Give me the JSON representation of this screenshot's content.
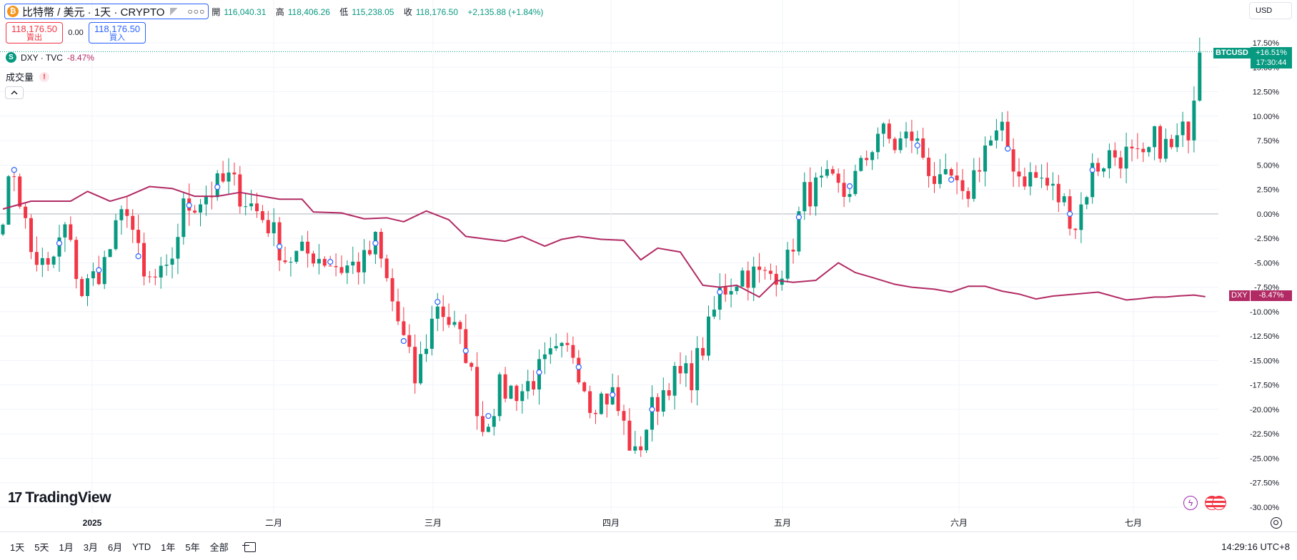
{
  "header": {
    "symbol_title": "比特幣 / 美元 · 1天 · CRYPTO",
    "btc_icon_glyph": "₿",
    "ohlc": {
      "open_label": "開",
      "open": "116,040.31",
      "high_label": "高",
      "high": "118,406.26",
      "low_label": "低",
      "low": "115,238.05",
      "close_label": "收",
      "close": "118,176.50",
      "change": "+2,135.88 (+1.84%)"
    },
    "currency": "USD"
  },
  "trade": {
    "sell_price": "118,176.50",
    "sell_label": "賣出",
    "spread": "0.00",
    "buy_price": "118,176.50",
    "buy_label": "買入"
  },
  "overlay": {
    "icon_glyph": "S",
    "name": "DXY · TVC",
    "change": "-8.47%"
  },
  "volume": {
    "label": "成交量",
    "warn_glyph": "!"
  },
  "badges": {
    "btc_symbol": "BTCUSD",
    "btc_change": "+16.51%",
    "btc_countdown": "17:30:44",
    "dxy_symbol": "DXY",
    "dxy_change": "-8.47%"
  },
  "colors": {
    "up": "#089981",
    "down": "#f23645",
    "dxy": "#b22a64",
    "grid": "#f0f3fa"
  },
  "logo": {
    "text": "TradingView",
    "mark": "17"
  },
  "bottom_bar": {
    "ranges": [
      "1天",
      "5天",
      "1月",
      "3月",
      "6月",
      "YTD",
      "1年",
      "5年",
      "全部"
    ],
    "clock": "14:29:16 UTC+8"
  },
  "chart_data": {
    "type": "candlestick",
    "y_axis": {
      "unit": "%",
      "range": [
        -30,
        17.5
      ],
      "ticks": [
        "17.50%",
        "15.00%",
        "12.50%",
        "10.00%",
        "7.50%",
        "5.00%",
        "2.50%",
        "0.00%",
        "-2.50%",
        "-5.00%",
        "-7.50%",
        "-10.00%",
        "-12.50%",
        "-15.00%",
        "-17.50%",
        "-20.00%",
        "-22.50%",
        "-25.00%",
        "-27.50%",
        "-30.00%"
      ]
    },
    "x_axis": {
      "labels": [
        "2025",
        "二月",
        "三月",
        "四月",
        "五月",
        "六月",
        "七月"
      ]
    },
    "btc_anchors": [
      {
        "i": 0,
        "v": 0.5
      },
      {
        "i": 2,
        "v": 4.5
      },
      {
        "i": 5,
        "v": -4
      },
      {
        "i": 8,
        "v": -6
      },
      {
        "i": 11,
        "v": -1.5
      },
      {
        "i": 14,
        "v": -8
      },
      {
        "i": 18,
        "v": -5
      },
      {
        "i": 22,
        "v": 1
      },
      {
        "i": 25,
        "v": -7
      },
      {
        "i": 29,
        "v": -6.5
      },
      {
        "i": 32,
        "v": 0.5
      },
      {
        "i": 36,
        "v": 2
      },
      {
        "i": 40,
        "v": 3.5
      },
      {
        "i": 43,
        "v": 1.5
      },
      {
        "i": 47,
        "v": -1
      },
      {
        "i": 50,
        "v": -4.5
      },
      {
        "i": 55,
        "v": -4
      },
      {
        "i": 60,
        "v": -5.5
      },
      {
        "i": 64,
        "v": -5
      },
      {
        "i": 66,
        "v": -3
      },
      {
        "i": 70,
        "v": -11
      },
      {
        "i": 73,
        "v": -17
      },
      {
        "i": 77,
        "v": -9
      },
      {
        "i": 82,
        "v": -14
      },
      {
        "i": 85,
        "v": -22
      },
      {
        "i": 88,
        "v": -18
      },
      {
        "i": 92,
        "v": -18
      },
      {
        "i": 97,
        "v": -15
      },
      {
        "i": 101,
        "v": -14
      },
      {
        "i": 104,
        "v": -19
      },
      {
        "i": 108,
        "v": -18.5
      },
      {
        "i": 112,
        "v": -25
      },
      {
        "i": 115,
        "v": -20
      },
      {
        "i": 118,
        "v": -17
      },
      {
        "i": 122,
        "v": -16.5
      },
      {
        "i": 125,
        "v": -12
      },
      {
        "i": 127,
        "v": -8
      },
      {
        "i": 131,
        "v": -6
      },
      {
        "i": 135,
        "v": -6.5
      },
      {
        "i": 139,
        "v": -5
      },
      {
        "i": 142,
        "v": 2
      },
      {
        "i": 146,
        "v": 3
      },
      {
        "i": 149,
        "v": 2
      },
      {
        "i": 152,
        "v": 4.5
      },
      {
        "i": 155,
        "v": 8.5
      },
      {
        "i": 158,
        "v": 7
      },
      {
        "i": 161,
        "v": 8
      },
      {
        "i": 163,
        "v": 6
      },
      {
        "i": 166,
        "v": 2.5
      },
      {
        "i": 168,
        "v": 3.5
      },
      {
        "i": 170,
        "v": 1
      },
      {
        "i": 174,
        "v": 7
      },
      {
        "i": 177,
        "v": 8
      },
      {
        "i": 180,
        "v": 4
      },
      {
        "i": 184,
        "v": 3.5
      },
      {
        "i": 188,
        "v": 1
      },
      {
        "i": 190,
        "v": -1
      },
      {
        "i": 193,
        "v": 4.5
      },
      {
        "i": 196,
        "v": 6
      },
      {
        "i": 199,
        "v": 6
      },
      {
        "i": 202,
        "v": 5
      },
      {
        "i": 204,
        "v": 7.5
      },
      {
        "i": 207,
        "v": 6.5
      },
      {
        "i": 210,
        "v": 9
      },
      {
        "i": 212,
        "v": 16.5
      }
    ],
    "dxy_points": [
      {
        "i": 0,
        "v": 0.5
      },
      {
        "i": 5,
        "v": 1.3
      },
      {
        "i": 10,
        "v": 1.3
      },
      {
        "i": 12,
        "v": 1.3
      },
      {
        "i": 15,
        "v": 2.3
      },
      {
        "i": 19,
        "v": 1.3
      },
      {
        "i": 22,
        "v": 1.8
      },
      {
        "i": 26,
        "v": 2.8
      },
      {
        "i": 30,
        "v": 2.6
      },
      {
        "i": 34,
        "v": 1.8
      },
      {
        "i": 38,
        "v": 1.8
      },
      {
        "i": 42,
        "v": 2.2
      },
      {
        "i": 46,
        "v": 1.8
      },
      {
        "i": 49,
        "v": 1.5
      },
      {
        "i": 53,
        "v": 1.5
      },
      {
        "i": 55,
        "v": 0.2
      },
      {
        "i": 60,
        "v": 0.1
      },
      {
        "i": 64,
        "v": -0.5
      },
      {
        "i": 68,
        "v": -0.4
      },
      {
        "i": 71,
        "v": -0.8
      },
      {
        "i": 75,
        "v": 0.3
      },
      {
        "i": 79,
        "v": -0.6
      },
      {
        "i": 82,
        "v": -2.3
      },
      {
        "i": 86,
        "v": -2.6
      },
      {
        "i": 89,
        "v": -2.8
      },
      {
        "i": 92,
        "v": -2.3
      },
      {
        "i": 96,
        "v": -3.3
      },
      {
        "i": 99,
        "v": -2.6
      },
      {
        "i": 102,
        "v": -2.3
      },
      {
        "i": 106,
        "v": -2.6
      },
      {
        "i": 110,
        "v": -2.7
      },
      {
        "i": 113,
        "v": -4.7
      },
      {
        "i": 116,
        "v": -3.5
      },
      {
        "i": 120,
        "v": -3.9
      },
      {
        "i": 124,
        "v": -7.3
      },
      {
        "i": 127,
        "v": -7.5
      },
      {
        "i": 130,
        "v": -7.3
      },
      {
        "i": 134,
        "v": -8.5
      },
      {
        "i": 137,
        "v": -6.8
      },
      {
        "i": 140,
        "v": -7
      },
      {
        "i": 144,
        "v": -6.8
      },
      {
        "i": 148,
        "v": -5
      },
      {
        "i": 151,
        "v": -6
      },
      {
        "i": 154,
        "v": -6.5
      },
      {
        "i": 158,
        "v": -7.2
      },
      {
        "i": 161,
        "v": -7.5
      },
      {
        "i": 165,
        "v": -7.7
      },
      {
        "i": 168,
        "v": -8
      },
      {
        "i": 171,
        "v": -7.4
      },
      {
        "i": 174,
        "v": -7.4
      },
      {
        "i": 177,
        "v": -7.9
      },
      {
        "i": 180,
        "v": -8.2
      },
      {
        "i": 183,
        "v": -8.7
      },
      {
        "i": 186,
        "v": -8.4
      },
      {
        "i": 190,
        "v": -8.2
      },
      {
        "i": 194,
        "v": -8
      },
      {
        "i": 199,
        "v": -8.8
      },
      {
        "i": 201,
        "v": -8.7
      },
      {
        "i": 204,
        "v": -8.5
      },
      {
        "i": 206,
        "v": -8.5
      },
      {
        "i": 208,
        "v": -8.4
      },
      {
        "i": 211,
        "v": -8.3
      },
      {
        "i": 213,
        "v": -8.47
      }
    ]
  }
}
